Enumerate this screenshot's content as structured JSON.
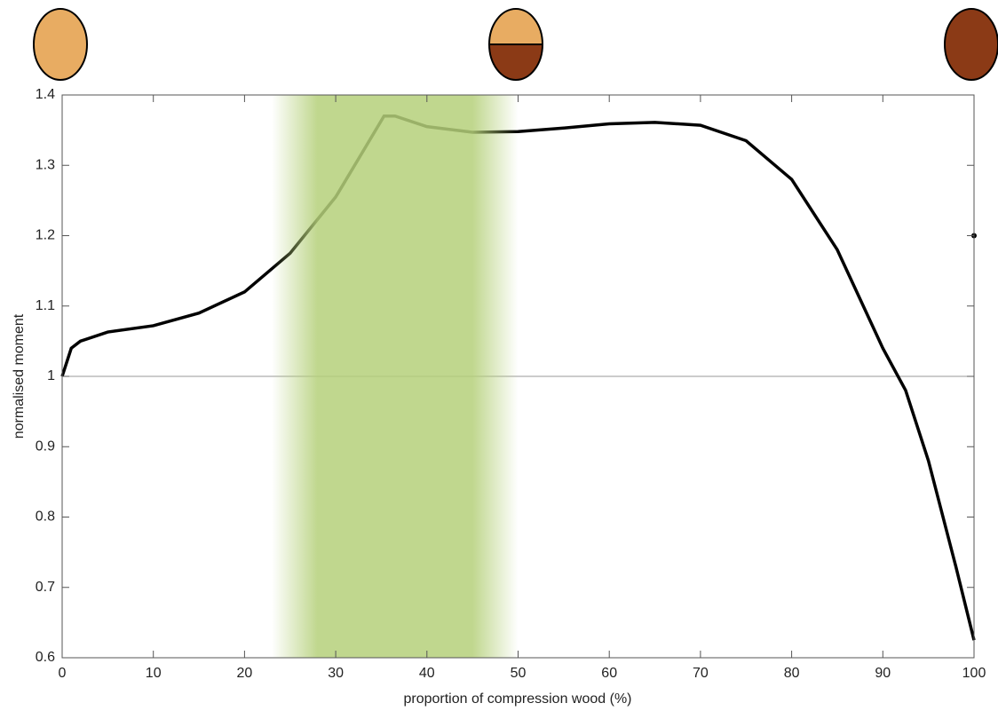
{
  "chart_data": {
    "type": "line",
    "x_label": "proportion of compression wood (%)",
    "y_label": "normalised moment",
    "x": [
      0,
      1,
      2,
      5,
      10,
      15,
      20,
      25,
      30,
      33,
      35.3,
      36.5,
      40,
      45,
      50,
      55,
      60,
      65,
      70,
      75,
      80,
      85,
      90,
      92.5,
      95,
      98,
      100
    ],
    "series": [
      {
        "color": "#000000",
        "values": [
          1.0,
          1.04,
          1.05,
          1.063,
          1.072,
          1.09,
          1.12,
          1.175,
          1.255,
          1.32,
          1.37,
          1.37,
          1.355,
          1.347,
          1.348,
          1.353,
          1.359,
          1.361,
          1.357,
          1.335,
          1.28,
          1.18,
          1.04,
          0.98,
          0.88,
          0.73,
          0.625
        ]
      }
    ],
    "reference_line": 1,
    "point": {
      "x": 100,
      "y": 1.2
    },
    "band": {
      "start": 23,
      "full_start": 28,
      "full_end": 45,
      "end": 50,
      "color": "#b5d07a"
    },
    "xlim": [
      0,
      100
    ],
    "xticks": [
      0,
      10,
      20,
      30,
      40,
      50,
      60,
      70,
      80,
      90,
      100
    ],
    "ylim": [
      0.6,
      1.4
    ],
    "yticks": [
      0.6,
      0.7,
      0.8,
      0.9,
      1,
      1.1,
      1.2,
      1.3,
      1.4
    ]
  }
}
